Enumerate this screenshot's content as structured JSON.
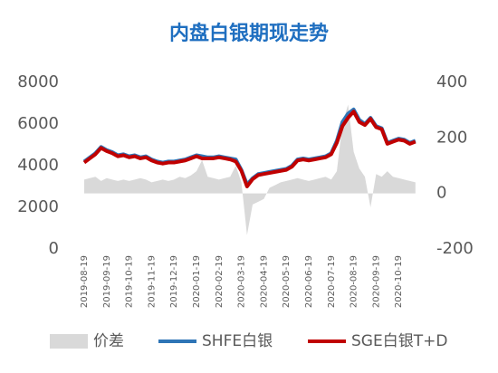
{
  "chart_data": {
    "type": "line",
    "title": "内盘白银期现走势",
    "categories": [
      "2019-08-19",
      null,
      null,
      null,
      "2019-09-19",
      null,
      null,
      null,
      "2019-10-19",
      null,
      null,
      null,
      "2019-11-19",
      null,
      null,
      null,
      "2019-12-19",
      null,
      null,
      null,
      "2020-01-19",
      null,
      null,
      null,
      "2020-02-19",
      null,
      null,
      null,
      "2020-03-19",
      null,
      null,
      null,
      "2020-04-19",
      null,
      null,
      null,
      "2020-05-19",
      null,
      null,
      null,
      "2020-06-19",
      null,
      null,
      null,
      "2020-07-19",
      null,
      null,
      null,
      "2020-08-19",
      null,
      null,
      null,
      "2020-09-19",
      null,
      null,
      null,
      "2020-10-19",
      null,
      null,
      null
    ],
    "series": [
      {
        "name": "价差",
        "type": "area",
        "axis": "y2",
        "color": "#d9d9d9",
        "values": [
          50,
          55,
          60,
          45,
          55,
          50,
          45,
          50,
          45,
          50,
          55,
          50,
          40,
          45,
          50,
          45,
          50,
          60,
          55,
          65,
          80,
          120,
          60,
          55,
          50,
          55,
          60,
          100,
          40,
          -150,
          -40,
          -30,
          -20,
          20,
          30,
          40,
          45,
          50,
          55,
          50,
          45,
          50,
          55,
          60,
          50,
          80,
          250,
          320,
          150,
          90,
          60,
          -50,
          70,
          60,
          80,
          60,
          55,
          50,
          45,
          40
        ]
      },
      {
        "name": "SHFE白银",
        "type": "line",
        "color": "#2e75b6",
        "values": [
          4200,
          4400,
          4600,
          4900,
          4750,
          4650,
          4500,
          4550,
          4450,
          4500,
          4400,
          4450,
          4300,
          4200,
          4150,
          4200,
          4200,
          4250,
          4300,
          4400,
          4500,
          4450,
          4400,
          4400,
          4450,
          4400,
          4350,
          4300,
          3800,
          3100,
          3400,
          3600,
          3650,
          3700,
          3750,
          3800,
          3850,
          4000,
          4300,
          4350,
          4300,
          4350,
          4400,
          4450,
          4600,
          5200,
          6100,
          6500,
          6700,
          6200,
          6000,
          6300,
          5900,
          5800,
          5100,
          5200,
          5300,
          5250,
          5100,
          5200
        ]
      },
      {
        "name": "SGE白银T+D",
        "type": "line",
        "color": "#c00000",
        "values": [
          4150,
          4350,
          4550,
          4850,
          4700,
          4600,
          4450,
          4500,
          4400,
          4450,
          4350,
          4400,
          4250,
          4150,
          4100,
          4150,
          4150,
          4200,
          4250,
          4350,
          4450,
          4350,
          4350,
          4350,
          4400,
          4350,
          4300,
          4200,
          3750,
          3000,
          3350,
          3550,
          3600,
          3650,
          3700,
          3750,
          3800,
          3950,
          4250,
          4300,
          4250,
          4300,
          4350,
          4400,
          4550,
          5100,
          5900,
          6300,
          6600,
          6100,
          5950,
          6250,
          5850,
          5750,
          5050,
          5150,
          5250,
          5200,
          5050,
          5150
        ]
      }
    ],
    "ylim": [
      0,
      8000
    ],
    "yticks": [
      0,
      2000,
      4000,
      6000,
      8000
    ],
    "y2lim": [
      -200,
      400
    ],
    "y2ticks": [
      -200,
      0,
      200,
      400
    ],
    "grid": false,
    "legend": "bottom"
  }
}
